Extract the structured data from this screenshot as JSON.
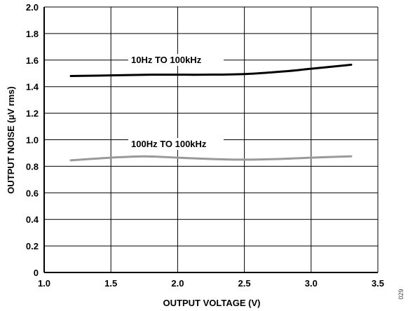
{
  "chart_data": {
    "type": "line",
    "xlabel": "OUTPUT VOLTAGE (V)",
    "ylabel": "OUTPUT NOISE (µV rms)",
    "xlim": [
      1.0,
      3.5
    ],
    "ylim": [
      0,
      2.0
    ],
    "x_ticks": [
      "1.0",
      "1.5",
      "2.0",
      "2.5",
      "3.0",
      "3.5"
    ],
    "y_ticks": [
      "0",
      "0.2",
      "0.4",
      "0.6",
      "0.8",
      "1.0",
      "1.2",
      "1.4",
      "1.6",
      "1.8",
      "2.0"
    ],
    "grid": true,
    "series": [
      {
        "name": "10Hz TO 100kHz",
        "color": "#000000",
        "x": [
          1.2,
          1.5,
          1.8,
          2.0,
          2.2,
          2.5,
          2.8,
          3.0,
          3.3
        ],
        "y": [
          1.48,
          1.485,
          1.49,
          1.49,
          1.49,
          1.495,
          1.515,
          1.535,
          1.565
        ]
      },
      {
        "name": "100Hz TO 100kHz",
        "color": "#999999",
        "x": [
          1.2,
          1.5,
          1.75,
          2.0,
          2.25,
          2.5,
          2.75,
          3.0,
          3.3
        ],
        "y": [
          0.845,
          0.865,
          0.875,
          0.865,
          0.855,
          0.85,
          0.855,
          0.865,
          0.875
        ]
      }
    ],
    "figure_id": "029"
  }
}
